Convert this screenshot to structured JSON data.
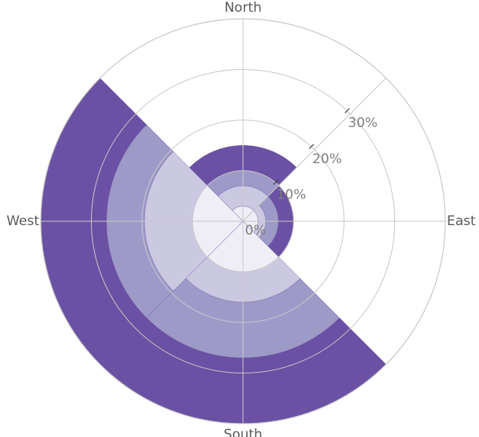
{
  "chart_data": {
    "type": "polar-bar",
    "categories": [
      "North",
      "East",
      "South",
      "West"
    ],
    "series": [
      {
        "color": "#efedf5",
        "values": [
          3,
          3,
          10,
          10
        ]
      },
      {
        "color": "#cbc9e2",
        "values": [
          4,
          1.5,
          6,
          9.5
        ]
      },
      {
        "color": "#9e9ac8",
        "values": [
          3,
          2.5,
          11,
          7.5
        ]
      },
      {
        "color": "#6a51a3",
        "values": [
          5,
          3,
          13,
          13
        ]
      }
    ],
    "ylim": [
      0,
      40
    ],
    "yticks": [
      {
        "value": 0,
        "label": "0%"
      },
      {
        "value": 10,
        "label": "10%"
      },
      {
        "value": 20,
        "label": "20%"
      },
      {
        "value": 30,
        "label": "30%"
      }
    ],
    "grid": true
  }
}
